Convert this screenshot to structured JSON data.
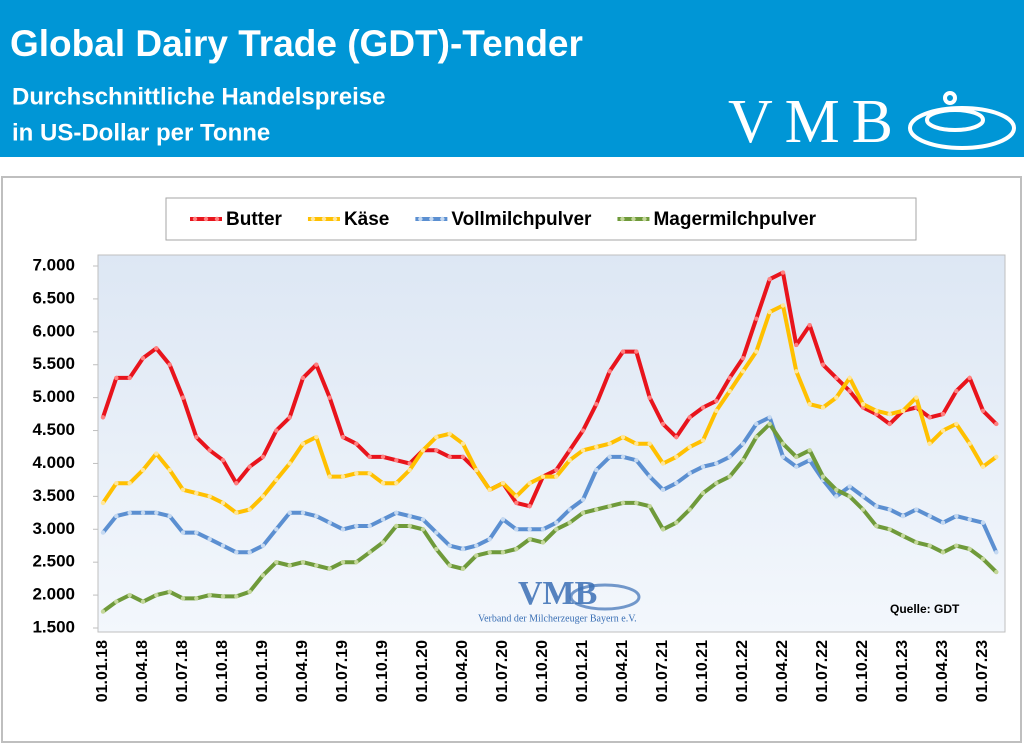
{
  "header": {
    "title": "Global Dairy Trade (GDT)-Tender",
    "subtitle": [
      "Durchschnittliche Handelspreise",
      "in US-Dollar per Tonne"
    ],
    "logo": "VMB"
  },
  "watermark": {
    "logo": "VMB",
    "tagline": "Verband der Milcherzeuger Bayern e.V."
  },
  "chart_data": {
    "type": "line",
    "source": "Quelle:  GDT",
    "categories": [
      "01.01.18",
      null,
      null,
      "01.04.18",
      null,
      null,
      "01.07.18",
      null,
      null,
      "01.10.18",
      null,
      null,
      "01.01.19",
      null,
      null,
      "01.04.19",
      null,
      null,
      "01.07.19",
      null,
      null,
      "01.10.19",
      null,
      null,
      "01.01.20",
      null,
      null,
      "01.04.20",
      null,
      null,
      "01.07.20",
      null,
      null,
      "01.10.20",
      null,
      null,
      "01.01.21",
      null,
      null,
      "01.04.21",
      null,
      null,
      "01.07.21",
      null,
      null,
      "01.10.21",
      null,
      null,
      "01.01.22",
      null,
      null,
      "01.04.22",
      null,
      null,
      "01.07.22",
      null,
      null,
      "01.10.22",
      null,
      null,
      "01.01.23",
      null,
      null,
      "01.04.23",
      null,
      null,
      "01.07.23",
      null
    ],
    "series": [
      {
        "name": "Butter",
        "color": "#e8141c",
        "marker": "#ff8080",
        "values": [
          4700,
          5300,
          5300,
          5600,
          5750,
          5500,
          5000,
          4400,
          4200,
          4050,
          3700,
          3950,
          4100,
          4500,
          4700,
          5300,
          5500,
          5000,
          4400,
          4300,
          4100,
          4100,
          4050,
          4000,
          4200,
          4200,
          4100,
          4100,
          3900,
          3600,
          3700,
          3400,
          3350,
          3800,
          3900,
          4200,
          4500,
          4900,
          5400,
          5700,
          5700,
          5000,
          4600,
          4400,
          4700,
          4850,
          4950,
          5300,
          5600,
          6200,
          6800,
          6900,
          5800,
          6100,
          5500,
          5300,
          5100,
          4850,
          4750,
          4600,
          4800,
          4850,
          4700,
          4750,
          5100,
          5300,
          4800,
          4600
        ]
      },
      {
        "name": "Käse",
        "color": "#ffc000",
        "marker": "#ffe699",
        "values": [
          3400,
          3700,
          3700,
          3900,
          4150,
          3900,
          3600,
          3550,
          3500,
          3400,
          3250,
          3300,
          3500,
          3750,
          4000,
          4300,
          4400,
          3800,
          3800,
          3850,
          3850,
          3700,
          3700,
          3900,
          4200,
          4400,
          4450,
          4300,
          3900,
          3600,
          3700,
          3500,
          3700,
          3800,
          3800,
          4050,
          4200,
          4250,
          4300,
          4400,
          4300,
          4300,
          4000,
          4100,
          4250,
          4350,
          4800,
          5100,
          5400,
          5700,
          6300,
          6400,
          5400,
          4900,
          4850,
          5000,
          5300,
          4900,
          4800,
          4750,
          4800,
          5000,
          4300,
          4500,
          4600,
          4300,
          3950,
          4100
        ]
      },
      {
        "name": "Vollmilchpulver",
        "color": "#5b8fd1",
        "marker": "#c5d9f1",
        "values": [
          2950,
          3200,
          3250,
          3250,
          3250,
          3200,
          2950,
          2950,
          2850,
          2750,
          2650,
          2650,
          2750,
          3000,
          3250,
          3250,
          3200,
          3100,
          3000,
          3050,
          3050,
          3150,
          3250,
          3200,
          3150,
          2950,
          2750,
          2700,
          2750,
          2850,
          3150,
          3000,
          3000,
          3000,
          3100,
          3300,
          3450,
          3900,
          4100,
          4100,
          4050,
          3800,
          3600,
          3700,
          3850,
          3950,
          4000,
          4100,
          4300,
          4600,
          4700,
          4100,
          3950,
          4050,
          3750,
          3500,
          3650,
          3500,
          3350,
          3300,
          3200,
          3300,
          3200,
          3100,
          3200,
          3150,
          3100,
          2650
        ]
      },
      {
        "name": "Magermilchpulver",
        "color": "#6f9a3a",
        "marker": "#c4d79b",
        "values": [
          1750,
          1900,
          2000,
          1900,
          2000,
          2050,
          1950,
          1950,
          2000,
          1980,
          1980,
          2050,
          2300,
          2500,
          2450,
          2500,
          2450,
          2400,
          2500,
          2500,
          2650,
          2800,
          3050,
          3050,
          3000,
          2700,
          2450,
          2400,
          2600,
          2650,
          2650,
          2700,
          2850,
          2800,
          3000,
          3100,
          3250,
          3300,
          3350,
          3400,
          3400,
          3350,
          3000,
          3100,
          3300,
          3550,
          3700,
          3800,
          4050,
          4400,
          4600,
          4300,
          4100,
          4200,
          3800,
          3600,
          3500,
          3300,
          3050,
          3000,
          2900,
          2800,
          2750,
          2650,
          2750,
          2700,
          2550,
          2350
        ]
      }
    ],
    "ylim": [
      1500,
      7000
    ],
    "yticks": [
      {
        "value": 1500,
        "label": "1.500"
      },
      {
        "value": 2000,
        "label": "2.000"
      },
      {
        "value": 2500,
        "label": "2.500"
      },
      {
        "value": 3000,
        "label": "3.000"
      },
      {
        "value": 3500,
        "label": "3.500"
      },
      {
        "value": 4000,
        "label": "4.000"
      },
      {
        "value": 4500,
        "label": "4.500"
      },
      {
        "value": 5000,
        "label": "5.000"
      },
      {
        "value": 5500,
        "label": "5.500"
      },
      {
        "value": 6000,
        "label": "6.000"
      },
      {
        "value": 6500,
        "label": "6.500"
      },
      {
        "value": 7000,
        "label": "7.000"
      }
    ],
    "grid": false,
    "legend": "top"
  }
}
